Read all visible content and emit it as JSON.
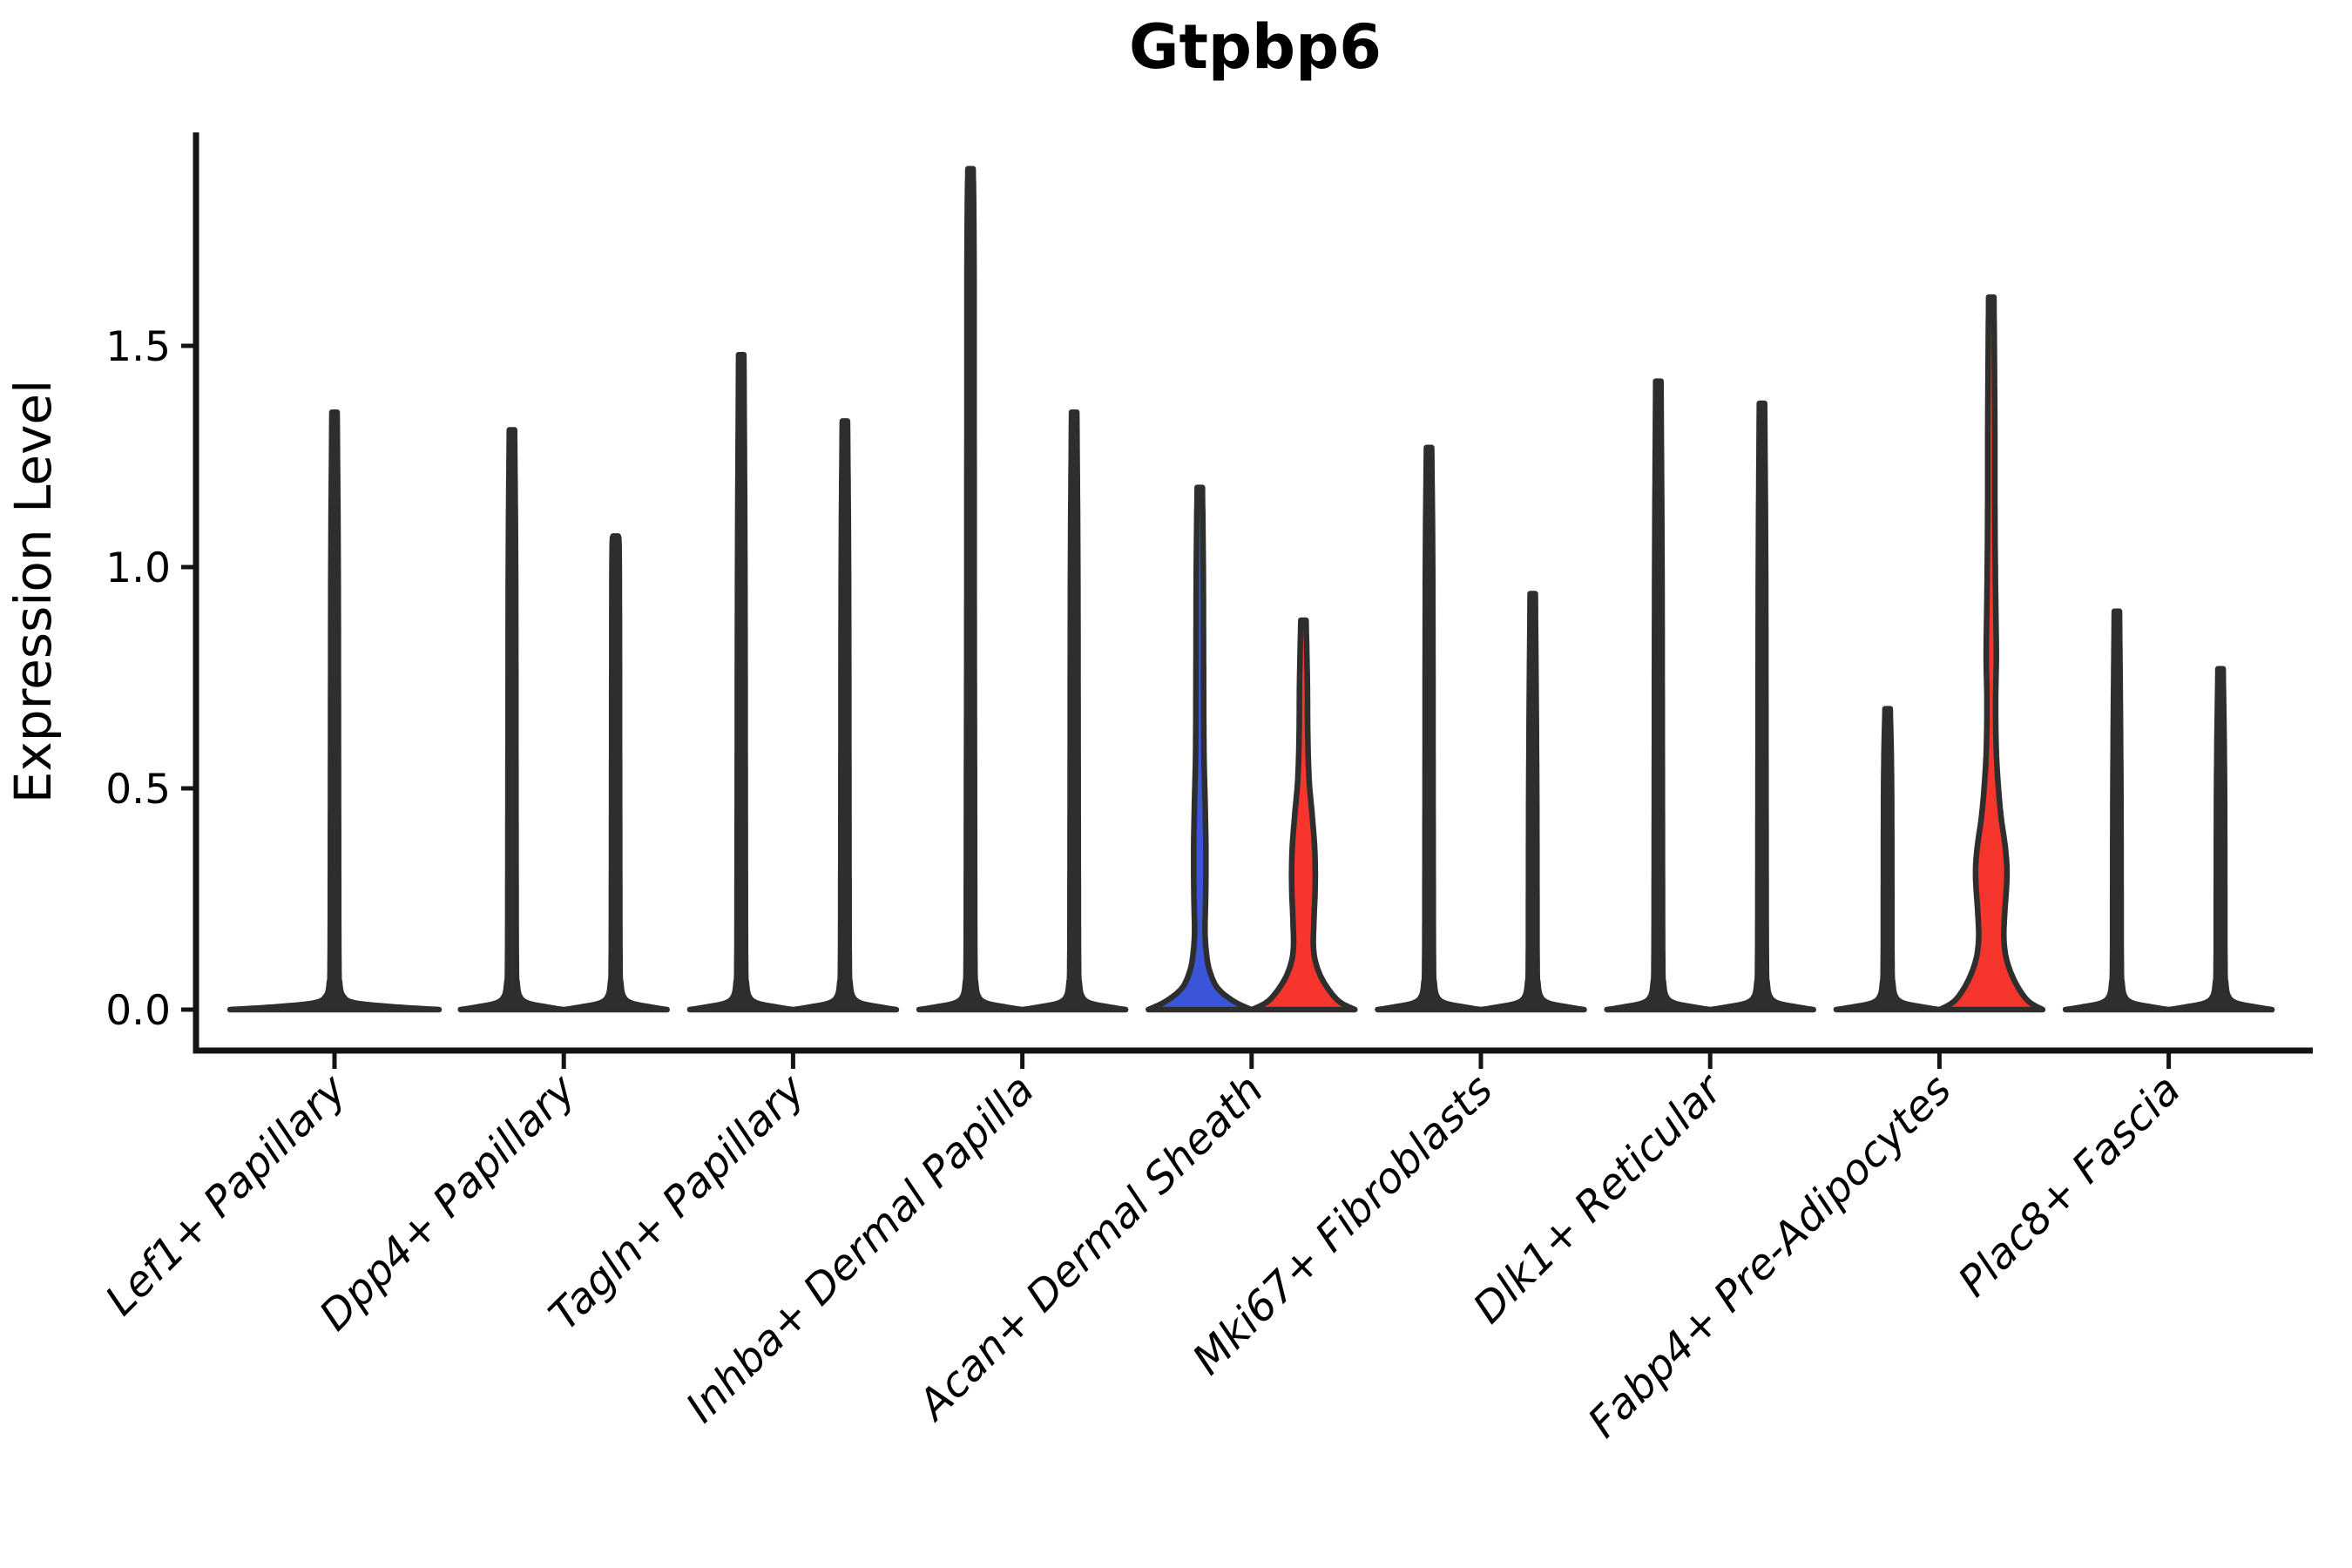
{
  "chart_data": {
    "type": "violin",
    "title": "Gtpbp6",
    "ylabel": "Expression Level",
    "xlabel": "",
    "y_ticks": [
      "0.0",
      "0.5",
      "1.0",
      "1.5"
    ],
    "y_axis_range": [
      -0.09,
      1.98
    ],
    "grid": false,
    "x_label_rotation_deg": 45,
    "legend": "none",
    "colors": {
      "highlight_blue": "#3B55D9",
      "highlight_red": "#F6352C",
      "violin_dark": "#2F2F2F",
      "violin_stroke": "#2E2E2E",
      "axis_color": "#141414"
    },
    "categories": [
      {
        "label": "Lef1+ Papillary",
        "violins": [
          {
            "position": "single",
            "fill": "dark",
            "max_expression": 1.35,
            "shape": "spike_wide"
          }
        ]
      },
      {
        "label": "Dpp4+ Papillary",
        "violins": [
          {
            "position": "left",
            "fill": "dark",
            "max_expression": 1.31,
            "shape": "spike"
          },
          {
            "position": "right",
            "fill": "dark",
            "max_expression": 1.07,
            "shape": "spike"
          }
        ]
      },
      {
        "label": "Tagln+ Papillary",
        "violins": [
          {
            "position": "left",
            "fill": "dark",
            "max_expression": 1.48,
            "shape": "spike"
          },
          {
            "position": "right",
            "fill": "dark",
            "max_expression": 1.33,
            "shape": "spike"
          }
        ]
      },
      {
        "label": "Inhba+ Dermal Papilla",
        "violins": [
          {
            "position": "left",
            "fill": "dark",
            "max_expression": 1.9,
            "shape": "spike"
          },
          {
            "position": "right",
            "fill": "dark",
            "max_expression": 1.35,
            "shape": "spike"
          }
        ]
      },
      {
        "label": "Acan+ Dermal Sheath",
        "violins": [
          {
            "position": "left",
            "fill": "blue",
            "max_expression": 1.18,
            "shape": "acan_blue"
          },
          {
            "position": "right",
            "fill": "red",
            "max_expression": 0.88,
            "shape": "acan_red"
          }
        ]
      },
      {
        "label": "Mki67+ Fibroblasts",
        "violins": [
          {
            "position": "left",
            "fill": "dark",
            "max_expression": 1.27,
            "shape": "spike"
          },
          {
            "position": "right",
            "fill": "dark",
            "max_expression": 0.94,
            "shape": "spike"
          }
        ]
      },
      {
        "label": "Dlk1+ Reticular",
        "violins": [
          {
            "position": "left",
            "fill": "dark",
            "max_expression": 1.42,
            "shape": "spike"
          },
          {
            "position": "right",
            "fill": "dark",
            "max_expression": 1.37,
            "shape": "spike"
          }
        ]
      },
      {
        "label": "Fabp4+ Pre-Adipocytes",
        "violins": [
          {
            "position": "left",
            "fill": "dark",
            "max_expression": 0.68,
            "shape": "spike"
          },
          {
            "position": "right",
            "fill": "red",
            "max_expression": 1.61,
            "shape": "fabp4_red"
          }
        ]
      },
      {
        "label": "Plac8+ Fascia",
        "violins": [
          {
            "position": "left",
            "fill": "dark",
            "max_expression": 0.9,
            "shape": "spike"
          },
          {
            "position": "right",
            "fill": "dark",
            "max_expression": 0.77,
            "shape": "spike"
          }
        ]
      }
    ],
    "violin_shapes": {
      "spike": [
        [
          0,
          59
        ],
        [
          0.006,
          40
        ],
        [
          0.015,
          18
        ],
        [
          0.03,
          9
        ],
        [
          0.06,
          6
        ],
        [
          0.12,
          5
        ],
        [
          0.5,
          4.6
        ],
        [
          1.0,
          4.2
        ],
        [
          1.7,
          4.0
        ]
      ],
      "spike_wide": [
        [
          0,
          120
        ],
        [
          0.006,
          70
        ],
        [
          0.015,
          24
        ],
        [
          0.03,
          10
        ],
        [
          0.06,
          6
        ],
        [
          0.12,
          5
        ],
        [
          0.5,
          4.6
        ],
        [
          1.0,
          4.2
        ],
        [
          1.7,
          4.0
        ]
      ],
      "acan_blue": [
        [
          0,
          59
        ],
        [
          0.02,
          38
        ],
        [
          0.05,
          20
        ],
        [
          0.09,
          11
        ],
        [
          0.13,
          7.5
        ],
        [
          0.18,
          6
        ],
        [
          0.26,
          6.8
        ],
        [
          0.36,
          7
        ],
        [
          0.46,
          6.2
        ],
        [
          0.58,
          4.8
        ],
        [
          0.75,
          4.4
        ],
        [
          1.0,
          4.0
        ]
      ],
      "acan_red": [
        [
          0,
          59
        ],
        [
          0.02,
          40
        ],
        [
          0.06,
          24
        ],
        [
          0.1,
          15
        ],
        [
          0.14,
          11.5
        ],
        [
          0.2,
          12
        ],
        [
          0.28,
          13.5
        ],
        [
          0.36,
          13
        ],
        [
          0.44,
          10
        ],
        [
          0.52,
          6.5
        ],
        [
          0.62,
          5
        ],
        [
          0.75,
          4.4
        ]
      ],
      "fabp4_red": [
        [
          0,
          59
        ],
        [
          0.02,
          42
        ],
        [
          0.06,
          28
        ],
        [
          0.11,
          18
        ],
        [
          0.16,
          14.5
        ],
        [
          0.22,
          15.5
        ],
        [
          0.3,
          18
        ],
        [
          0.36,
          16.5
        ],
        [
          0.44,
          11
        ],
        [
          0.52,
          7.5
        ],
        [
          0.6,
          5.5
        ],
        [
          0.7,
          5
        ],
        [
          0.8,
          5.8
        ],
        [
          0.93,
          5
        ],
        [
          1.1,
          4.2
        ],
        [
          1.35,
          4.0
        ]
      ]
    }
  }
}
